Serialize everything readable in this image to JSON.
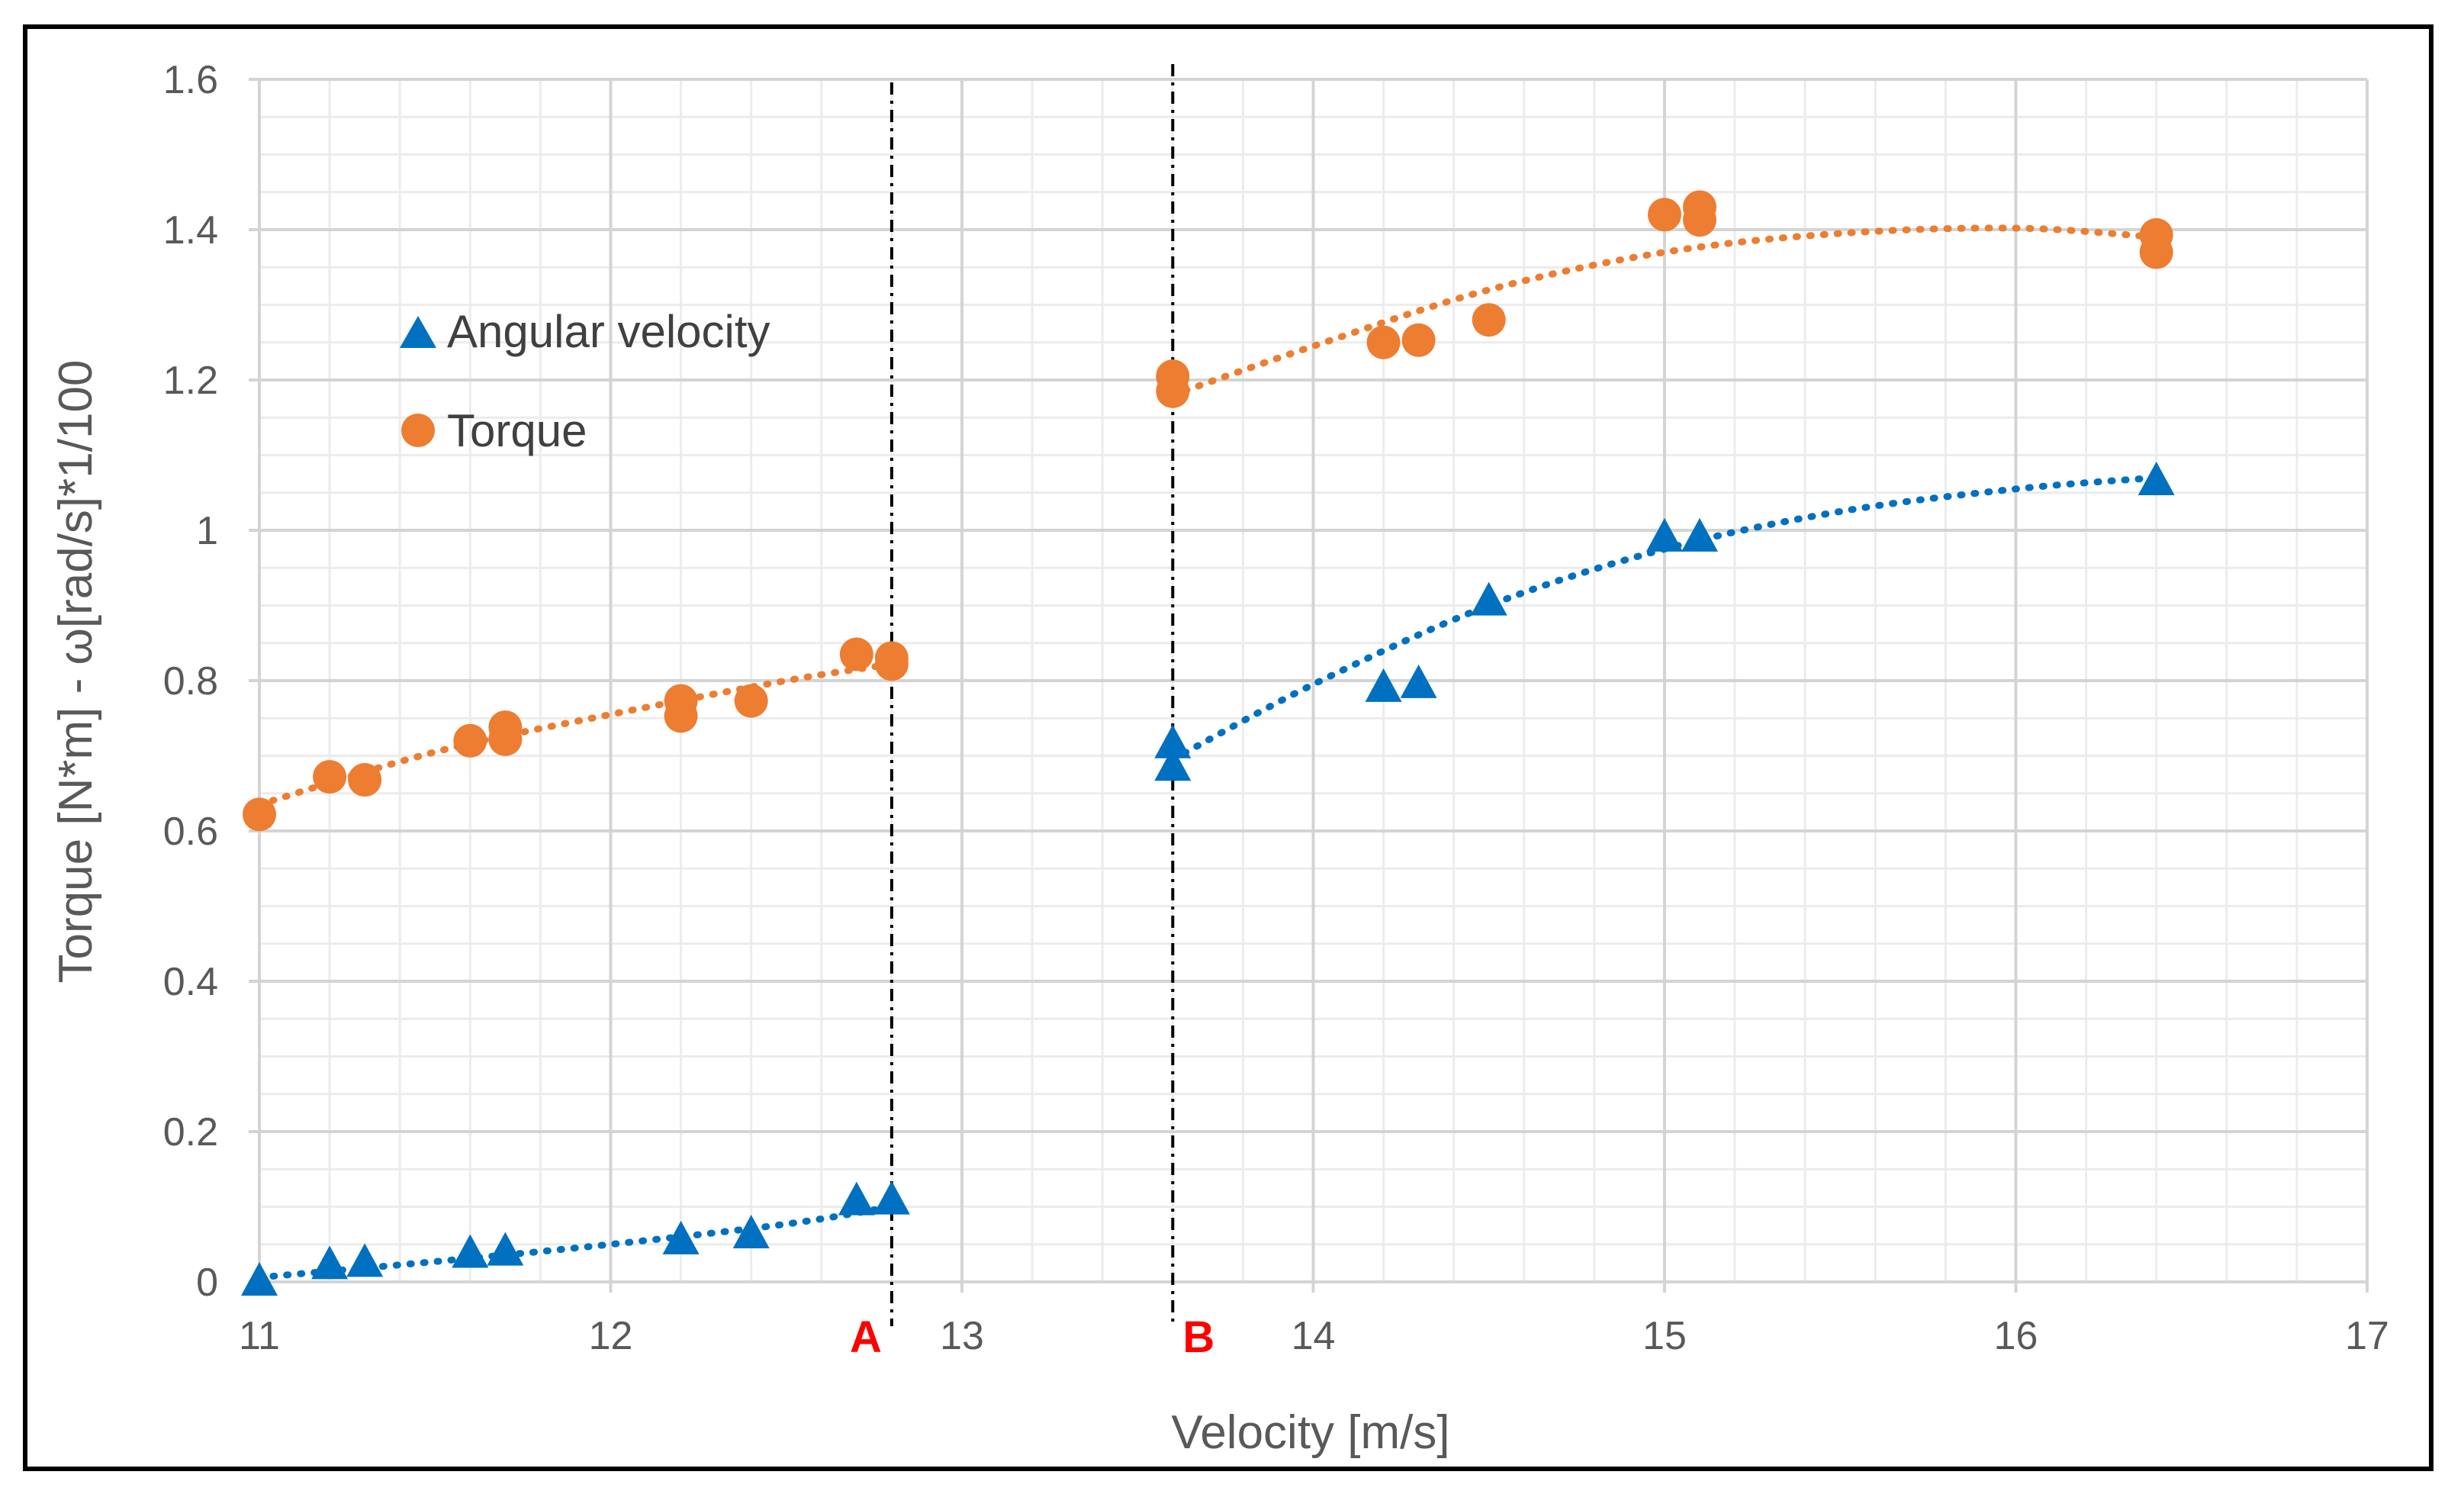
{
  "chart_data": {
    "type": "scatter",
    "title": "",
    "xlabel": "Velocity [m/s]",
    "ylabel": "Torque [N*m] - ω[rad/s]*1/100",
    "xlim": [
      11,
      17
    ],
    "ylim": [
      0,
      1.6
    ],
    "x_major_ticks": [
      "11",
      "12",
      "13",
      "14",
      "15",
      "16",
      "17"
    ],
    "y_major_ticks": [
      "0",
      "0.2",
      "0.4",
      "0.6",
      "0.8",
      "1",
      "1.2",
      "1.4",
      "1.6"
    ],
    "grid": true,
    "legend": {
      "position": "upper-left",
      "entries": [
        "Angular velocity",
        "Torque"
      ]
    },
    "series": [
      {
        "name": "Angular velocity",
        "marker": "triangle",
        "color": "#0070C0",
        "points": [
          [
            11.0,
            0.0
          ],
          [
            11.2,
            0.022
          ],
          [
            11.3,
            0.025
          ],
          [
            11.6,
            0.037
          ],
          [
            11.7,
            0.04
          ],
          [
            12.2,
            0.055
          ],
          [
            12.4,
            0.063
          ],
          [
            12.7,
            0.107
          ],
          [
            12.8,
            0.108
          ],
          [
            13.6,
            0.685
          ],
          [
            13.6,
            0.715
          ],
          [
            14.2,
            0.79
          ],
          [
            14.3,
            0.795
          ],
          [
            14.5,
            0.905
          ],
          [
            15.0,
            0.99
          ],
          [
            15.1,
            0.99
          ],
          [
            16.4,
            1.065
          ]
        ],
        "trendlines": [
          {
            "x": [
              11.0,
              11.5,
              12.0,
              12.5,
              12.8
            ],
            "y": [
              0.006,
              0.027,
              0.05,
              0.077,
              0.1
            ]
          },
          {
            "x": [
              13.6,
              14.0,
              14.5,
              15.0,
              15.5,
              16.0,
              16.4
            ],
            "y": [
              0.695,
              0.795,
              0.9,
              0.975,
              1.025,
              1.055,
              1.07
            ]
          }
        ]
      },
      {
        "name": "Torque",
        "marker": "circle",
        "color": "#ED7D31",
        "points": [
          [
            11.0,
            0.622
          ],
          [
            11.2,
            0.672
          ],
          [
            11.3,
            0.668
          ],
          [
            11.6,
            0.72
          ],
          [
            11.7,
            0.722
          ],
          [
            11.7,
            0.738
          ],
          [
            12.2,
            0.753
          ],
          [
            12.2,
            0.773
          ],
          [
            12.4,
            0.773
          ],
          [
            12.7,
            0.835
          ],
          [
            12.8,
            0.822
          ],
          [
            12.8,
            0.83
          ],
          [
            13.6,
            1.185
          ],
          [
            13.6,
            1.205
          ],
          [
            14.2,
            1.25
          ],
          [
            14.3,
            1.253
          ],
          [
            14.5,
            1.28
          ],
          [
            15.0,
            1.42
          ],
          [
            15.1,
            1.413
          ],
          [
            15.1,
            1.43
          ],
          [
            16.4,
            1.37
          ],
          [
            16.4,
            1.393
          ]
        ],
        "trendlines": [
          {
            "x": [
              11.0,
              11.5,
              12.0,
              12.5,
              12.8
            ],
            "y": [
              0.635,
              0.705,
              0.755,
              0.8,
              0.822
            ]
          },
          {
            "x": [
              13.6,
              14.0,
              14.5,
              15.0,
              15.5,
              16.0,
              16.4
            ],
            "y": [
              1.18,
              1.245,
              1.32,
              1.37,
              1.395,
              1.402,
              1.39
            ]
          }
        ]
      }
    ],
    "vertical_markers": [
      {
        "label": "A",
        "x": 12.8
      },
      {
        "label": "B",
        "x": 13.6
      }
    ]
  }
}
